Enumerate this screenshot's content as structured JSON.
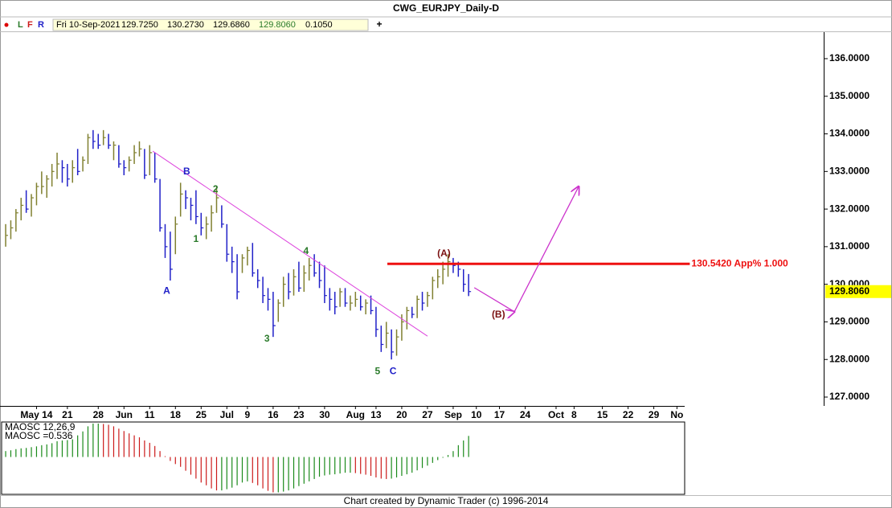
{
  "header": {
    "title": "CWG_EURJPY_Daily-D",
    "buttons": [
      "L",
      "F",
      "R"
    ],
    "fields": [
      "Fri 10-Sep-2021",
      "129.7250",
      "130.2730",
      "129.6860",
      "129.8060",
      "0.1050"
    ]
  },
  "footer": "Chart created by Dynamic Trader  (c) 1996-2014",
  "chart_data": [
    {
      "type": "ohlc",
      "up_color": "#808030",
      "down_color": "#2020c8",
      "xlim": [
        -1.1,
        132
      ],
      "ylim": [
        126.765,
        136.705
      ],
      "xticks": [
        {
          "value": 6,
          "label": "May 14"
        },
        {
          "value": 12,
          "label": "21"
        },
        {
          "value": 18,
          "label": "28"
        },
        {
          "value": 23,
          "label": "Jun"
        },
        {
          "value": 28,
          "label": "11"
        },
        {
          "value": 33,
          "label": "18"
        },
        {
          "value": 38,
          "label": "25"
        },
        {
          "value": 43,
          "label": "Jul"
        },
        {
          "value": 47,
          "label": "9"
        },
        {
          "value": 52,
          "label": "16"
        },
        {
          "value": 57,
          "label": "23"
        },
        {
          "value": 62,
          "label": "30"
        },
        {
          "value": 68,
          "label": "Aug"
        },
        {
          "value": 72,
          "label": "13"
        },
        {
          "value": 77,
          "label": "20"
        },
        {
          "value": 82,
          "label": "27"
        },
        {
          "value": 87,
          "label": "Sep"
        },
        {
          "value": 91.5,
          "label": "10"
        },
        {
          "value": 96,
          "label": "17"
        },
        {
          "value": 101,
          "label": "24"
        },
        {
          "value": 107,
          "label": "Oct"
        },
        {
          "value": 110.5,
          "label": "8"
        },
        {
          "value": 116,
          "label": "15"
        },
        {
          "value": 121,
          "label": "22"
        },
        {
          "value": 126,
          "label": "29"
        },
        {
          "value": 130.5,
          "label": "No"
        }
      ],
      "yticks": [
        {
          "value": 136,
          "label": "136.0000"
        },
        {
          "value": 135,
          "label": "135.0000"
        },
        {
          "value": 134,
          "label": "134.0000"
        },
        {
          "value": 133,
          "label": "133.0000"
        },
        {
          "value": 132,
          "label": "132.0000"
        },
        {
          "value": 131,
          "label": "131.0000"
        },
        {
          "value": 130,
          "label": "130.0000"
        },
        {
          "value": 129,
          "label": "129.0000"
        },
        {
          "value": 128,
          "label": "128.0000"
        },
        {
          "value": 127,
          "label": "127.0000"
        }
      ],
      "high": [
        131.6,
        131.7,
        132.0,
        132.3,
        132.5,
        132.4,
        132.7,
        133.0,
        132.9,
        133.2,
        133.5,
        133.3,
        133.2,
        133.3,
        133.6,
        133.4,
        134.0,
        134.1,
        134.0,
        134.1,
        134.0,
        133.8,
        133.7,
        133.3,
        133.4,
        133.7,
        133.8,
        133.6,
        133.7,
        133.5,
        132.8,
        131.6,
        131.4,
        131.8,
        132.7,
        132.5,
        132.3,
        132.5,
        131.9,
        131.8,
        132.1,
        132.6,
        132.1,
        131.6,
        131.0,
        130.8,
        130.8,
        131.0,
        131.1,
        130.4,
        130.2,
        129.9,
        129.8,
        129.6,
        130.2,
        130.3,
        130.4,
        130.6,
        130.5,
        130.7,
        130.8,
        130.6,
        130.5,
        129.9,
        129.8,
        129.9,
        129.9,
        129.7,
        129.8,
        129.7,
        129.6,
        129.7,
        129.4,
        128.9,
        129.0,
        128.8,
        128.8,
        129.2,
        129.4,
        129.4,
        129.7,
        129.8,
        129.8,
        130.2,
        130.4,
        130.6,
        130.8,
        130.7,
        130.6,
        130.4,
        130.273
      ],
      "low": [
        131.0,
        131.2,
        131.4,
        131.7,
        131.9,
        131.8,
        132.1,
        132.4,
        132.3,
        132.6,
        132.8,
        132.7,
        132.6,
        132.7,
        132.9,
        133.0,
        133.2,
        133.6,
        133.6,
        133.7,
        133.6,
        133.3,
        133.1,
        132.9,
        133.0,
        133.2,
        133.4,
        132.8,
        132.9,
        132.7,
        131.4,
        130.7,
        130.1,
        130.8,
        131.8,
        132.0,
        131.7,
        131.6,
        131.3,
        131.2,
        131.4,
        131.9,
        131.5,
        130.6,
        130.3,
        129.6,
        130.3,
        130.5,
        130.2,
        129.9,
        129.5,
        129.3,
        128.6,
        129.0,
        129.4,
        129.6,
        129.7,
        129.8,
        129.8,
        130.1,
        130.2,
        129.9,
        129.5,
        129.3,
        129.2,
        129.4,
        129.4,
        129.3,
        129.4,
        129.3,
        129.2,
        129.2,
        128.6,
        128.2,
        128.3,
        128.0,
        128.1,
        128.5,
        128.8,
        129.1,
        129.1,
        129.3,
        129.4,
        129.6,
        129.9,
        130.0,
        130.2,
        130.3,
        130.2,
        129.8,
        129.686
      ],
      "close": [
        131.3,
        131.5,
        131.9,
        132.1,
        132.0,
        132.3,
        132.6,
        132.6,
        132.8,
        133.0,
        133.2,
        133.1,
        132.8,
        133.1,
        133.0,
        133.3,
        133.9,
        133.8,
        133.7,
        133.9,
        133.7,
        133.7,
        133.2,
        133.1,
        133.3,
        133.5,
        133.6,
        132.9,
        133.5,
        132.8,
        131.5,
        131.0,
        130.4,
        131.6,
        132.4,
        132.3,
        132.1,
        131.8,
        131.5,
        131.6,
        131.9,
        132.3,
        131.6,
        130.8,
        130.6,
        129.8,
        130.7,
        130.9,
        130.3,
        130.1,
        129.7,
        129.6,
        128.9,
        129.5,
        130.0,
        129.8,
        130.2,
        129.9,
        130.3,
        130.5,
        130.3,
        130.1,
        129.7,
        129.6,
        129.4,
        129.8,
        129.5,
        129.5,
        129.6,
        129.4,
        129.5,
        129.3,
        128.8,
        128.4,
        128.7,
        128.2,
        128.6,
        129.0,
        129.3,
        129.2,
        129.6,
        129.5,
        129.7,
        130.1,
        130.2,
        130.4,
        130.6,
        130.5,
        130.4,
        130.0,
        129.806
      ],
      "annotations": [
        {
          "text": "A",
          "x": 31.3,
          "y": 129.82,
          "color": "#2020c8"
        },
        {
          "text": "B",
          "x": 35.2,
          "y": 132.99,
          "color": "#2020c8"
        },
        {
          "text": "1",
          "x": 37,
          "y": 131.19,
          "color": "#2a7a2a"
        },
        {
          "text": "2",
          "x": 40.8,
          "y": 132.52,
          "color": "#2a7a2a"
        },
        {
          "text": "3",
          "x": 50.8,
          "y": 128.54,
          "color": "#2a7a2a"
        },
        {
          "text": "4",
          "x": 58.4,
          "y": 130.87,
          "color": "#2a7a2a"
        },
        {
          "text": "5",
          "x": 72.3,
          "y": 127.68,
          "color": "#2a7a2a"
        },
        {
          "text": "C",
          "x": 75.3,
          "y": 127.68,
          "color": "#2020c8"
        },
        {
          "text": "(A)",
          "x": 85.2,
          "y": 130.81,
          "color": "#7a1010"
        },
        {
          "text": "(B)",
          "x": 95.8,
          "y": 129.18,
          "color": "#7a1010"
        }
      ],
      "trendline": {
        "color": "#dd44dd",
        "x": [
          28.6,
          82
        ],
        "y": [
          133.54,
          128.62
        ]
      },
      "level": {
        "value": 130.542,
        "label": "130.5420 App% 1.000",
        "color": "#ee1111",
        "x": [
          74.2,
          133
        ]
      },
      "projection": {
        "color": "#cc33cc",
        "x": [
          91.1,
          98.9,
          111.4
        ],
        "y": [
          129.91,
          129.27,
          132.6
        ]
      }
    },
    {
      "type": "histogram",
      "name": "MAOSC 12,26,9",
      "readout": "MAOSC =0.536",
      "rising_color": "#1a8a1a",
      "falling_color": "#cc1a1a",
      "ylim": [
        -0.95,
        0.89
      ],
      "values": [
        0.15,
        0.17,
        0.2,
        0.22,
        0.23,
        0.25,
        0.27,
        0.3,
        0.32,
        0.35,
        0.4,
        0.42,
        0.43,
        0.45,
        0.55,
        0.65,
        0.78,
        0.85,
        0.85,
        0.84,
        0.82,
        0.78,
        0.72,
        0.66,
        0.6,
        0.55,
        0.5,
        0.42,
        0.36,
        0.28,
        0.15,
        0.02,
        -0.1,
        -0.18,
        -0.25,
        -0.35,
        -0.45,
        -0.55,
        -0.65,
        -0.72,
        -0.8,
        -0.85,
        -0.85,
        -0.82,
        -0.78,
        -0.72,
        -0.65,
        -0.62,
        -0.66,
        -0.72,
        -0.8,
        -0.86,
        -0.9,
        -0.9,
        -0.88,
        -0.85,
        -0.8,
        -0.74,
        -0.68,
        -0.62,
        -0.56,
        -0.5,
        -0.47,
        -0.45,
        -0.44,
        -0.42,
        -0.4,
        -0.4,
        -0.41,
        -0.43,
        -0.45,
        -0.48,
        -0.52,
        -0.55,
        -0.56,
        -0.55,
        -0.52,
        -0.48,
        -0.44,
        -0.4,
        -0.34,
        -0.28,
        -0.22,
        -0.15,
        -0.08,
        -0.02,
        0.05,
        0.15,
        0.3,
        0.42,
        0.536
      ]
    }
  ]
}
